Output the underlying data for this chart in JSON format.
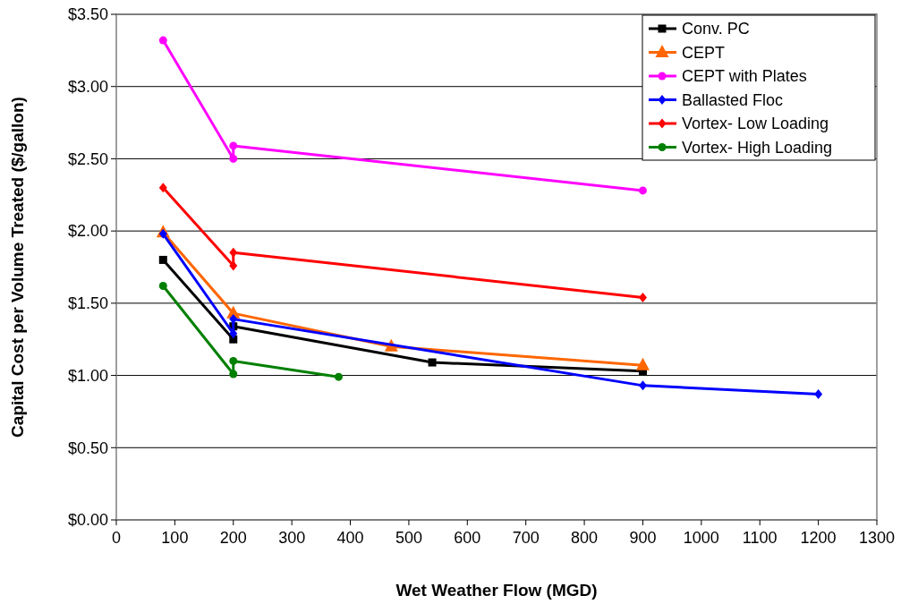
{
  "chart_data": {
    "type": "line",
    "xlabel": "Wet Weather Flow (MGD)",
    "ylabel": "Capital Cost per Volume Treated ($/gallon)",
    "xlim": [
      0,
      1300
    ],
    "xticks": [
      0,
      100,
      200,
      300,
      400,
      500,
      600,
      700,
      800,
      900,
      1000,
      1100,
      1200,
      1300
    ],
    "ylim": [
      0,
      3.5
    ],
    "yticks": [
      {
        "value": 0,
        "label": "$0.00"
      },
      {
        "value": 0.5,
        "label": "$0.50"
      },
      {
        "value": 1,
        "label": "$1.00"
      },
      {
        "value": 1.5,
        "label": "$1.50"
      },
      {
        "value": 2,
        "label": "$2.00"
      },
      {
        "value": 2.5,
        "label": "$2.50"
      },
      {
        "value": 3,
        "label": "$3.00"
      },
      {
        "value": 3.5,
        "label": "$3.50"
      }
    ],
    "grid": "y",
    "legend": "top right",
    "line_style": "solid",
    "series": [
      {
        "name": "Conv. PC",
        "color": "#000000",
        "marker": "square",
        "x": [
          80,
          200,
          200,
          540,
          900
        ],
        "values": [
          1.8,
          1.25,
          1.34,
          1.09,
          1.03
        ]
      },
      {
        "name": "CEPT",
        "color": "#ff6600",
        "marker": "triangle",
        "x": [
          80,
          200,
          470,
          900
        ],
        "values": [
          1.99,
          1.43,
          1.2,
          1.07
        ]
      },
      {
        "name": "CEPT with Plates",
        "color": "#ff00ff",
        "marker": "circle",
        "x": [
          80,
          200,
          200,
          900
        ],
        "values": [
          3.32,
          2.5,
          2.59,
          2.28
        ]
      },
      {
        "name": "Ballasted Floc",
        "color": "#0000ff",
        "marker": "diamond",
        "x": [
          80,
          200,
          200,
          900,
          1200
        ],
        "values": [
          1.98,
          1.29,
          1.39,
          0.93,
          0.87
        ]
      },
      {
        "name": "Vortex- Low Loading",
        "color": "#ff0000",
        "marker": "diamond",
        "x": [
          80,
          200,
          200,
          900
        ],
        "values": [
          2.3,
          1.76,
          1.85,
          1.54
        ]
      },
      {
        "name": "Vortex- High Loading",
        "color": "#008000",
        "marker": "circle",
        "x": [
          80,
          200,
          200,
          380
        ],
        "values": [
          1.62,
          1.01,
          1.1,
          0.99
        ]
      }
    ]
  }
}
